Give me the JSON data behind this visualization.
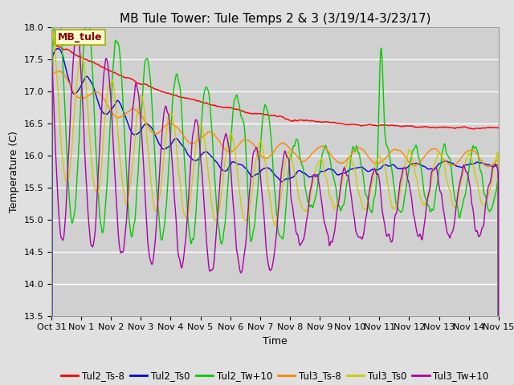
{
  "title": "MB Tule Tower: Tule Temps 2 & 3 (3/19/14-3/23/17)",
  "xlabel": "Time",
  "ylabel": "Temperature (C)",
  "ylim": [
    13.5,
    18.0
  ],
  "yticks": [
    13.5,
    14.0,
    14.5,
    15.0,
    15.5,
    16.0,
    16.5,
    17.0,
    17.5,
    18.0
  ],
  "xtick_labels": [
    "Oct 31",
    "Nov 1",
    "Nov 2",
    "Nov 3",
    "Nov 4",
    "Nov 5",
    "Nov 6",
    "Nov 7",
    "Nov 8",
    "Nov 9",
    "Nov 10",
    "Nov 11",
    "Nov 12",
    "Nov 13",
    "Nov 14",
    "Nov 15"
  ],
  "n_days": 15,
  "points_per_day": 96,
  "legend_label": "MB_tule",
  "series_labels": [
    "Tul2_Ts-8",
    "Tul2_Ts0",
    "Tul2_Tw+10",
    "Tul3_Ts-8",
    "Tul3_Ts0",
    "Tul3_Tw+10"
  ],
  "series_colors": [
    "#ff0000",
    "#0000dd",
    "#00cc00",
    "#ff8800",
    "#cccc00",
    "#aa00aa"
  ],
  "bg_color": "#e0e0e0",
  "plot_bg_color": "#d0d0d0",
  "title_fontsize": 11,
  "axis_fontsize": 9,
  "tick_fontsize": 8,
  "legend_fontsize": 8.5
}
